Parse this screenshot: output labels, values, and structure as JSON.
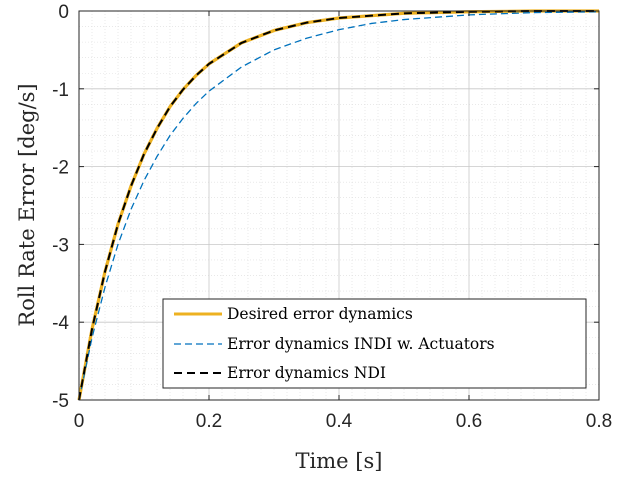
{
  "chart_data": {
    "type": "line",
    "title": "",
    "xlabel": "Time [s]",
    "ylabel": "Roll Rate Error [deg/s]",
    "xlim": [
      0,
      0.8
    ],
    "ylim": [
      -5,
      0
    ],
    "xticks": [
      "0",
      "0.2",
      "0.4",
      "0.6",
      "0.8"
    ],
    "yticks": [
      "0",
      "-1",
      "-2",
      "-3",
      "-4",
      "-5"
    ],
    "grid": true,
    "minor_grid": true,
    "legend_position": "bottom-right",
    "series": [
      {
        "name": "Desired error dynamics",
        "color": "#EDB120",
        "style": "solid",
        "x": [
          0,
          0.02,
          0.04,
          0.06,
          0.08,
          0.1,
          0.12,
          0.14,
          0.16,
          0.18,
          0.2,
          0.25,
          0.3,
          0.35,
          0.4,
          0.45,
          0.5,
          0.6,
          0.7,
          0.8
        ],
        "y": [
          -5.0,
          -4.09,
          -3.35,
          -2.74,
          -2.25,
          -1.84,
          -1.51,
          -1.23,
          -1.01,
          -0.83,
          -0.68,
          -0.41,
          -0.25,
          -0.15,
          -0.09,
          -0.06,
          -0.03,
          -0.01,
          0.0,
          0.0
        ]
      },
      {
        "name": "Error dynamics INDI w. Actuators",
        "color": "#0072BD",
        "style": "dashed",
        "x": [
          0,
          0.02,
          0.04,
          0.06,
          0.08,
          0.1,
          0.12,
          0.14,
          0.16,
          0.18,
          0.2,
          0.25,
          0.3,
          0.35,
          0.4,
          0.45,
          0.5,
          0.6,
          0.7,
          0.8
        ],
        "y": [
          -5.0,
          -4.2,
          -3.55,
          -3.0,
          -2.55,
          -2.18,
          -1.87,
          -1.6,
          -1.38,
          -1.19,
          -1.03,
          -0.72,
          -0.5,
          -0.35,
          -0.24,
          -0.16,
          -0.11,
          -0.05,
          -0.02,
          -0.01
        ]
      },
      {
        "name": "Error dynamics NDI",
        "color": "#000000",
        "style": "dashed",
        "x": [
          0,
          0.02,
          0.04,
          0.06,
          0.08,
          0.1,
          0.12,
          0.14,
          0.16,
          0.18,
          0.2,
          0.25,
          0.3,
          0.35,
          0.4,
          0.45,
          0.5,
          0.6,
          0.7,
          0.8
        ],
        "y": [
          -5.0,
          -4.09,
          -3.35,
          -2.74,
          -2.25,
          -1.84,
          -1.51,
          -1.23,
          -1.01,
          -0.83,
          -0.68,
          -0.41,
          -0.25,
          -0.15,
          -0.09,
          -0.06,
          -0.03,
          -0.01,
          0.0,
          0.0
        ]
      }
    ]
  }
}
